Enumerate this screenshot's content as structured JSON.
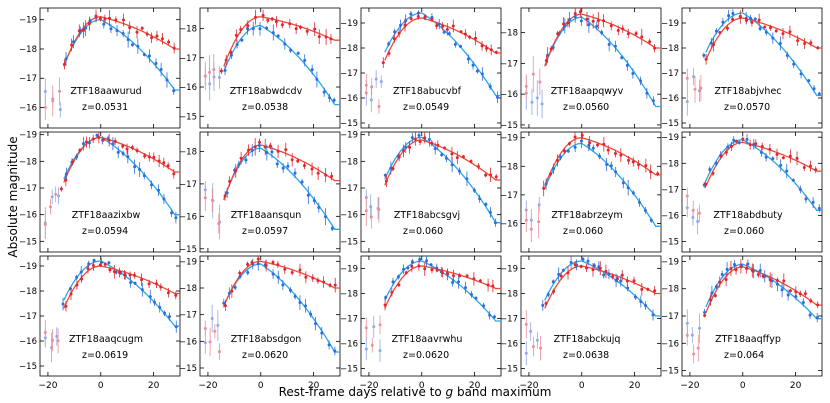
{
  "figure": {
    "ylabel": "Absolute magnitude",
    "xlabel_prefix": "Rest-frame days relative to ",
    "xlabel_band": "g",
    "xlabel_suffix": " band maximum",
    "colors": {
      "g": "#2a6fdb",
      "r": "#e0262f",
      "g_fit": "#2aa6ee",
      "r_fit": "#f04a3a",
      "g_faint": "#8fa9ea",
      "r_faint": "#ec8f98"
    }
  },
  "chart_data": {
    "type": "scatter",
    "xlim": [
      -23,
      30
    ],
    "xticks": [
      -20,
      0,
      20
    ],
    "grid": false,
    "panels": [
      {
        "name": "ZTF18aawurud",
        "z": "z=0.0531",
        "ylim": [
          -15.3,
          -19.4
        ],
        "yticks": [
          -16,
          -17,
          -18,
          -19
        ],
        "peak_g": -19.0,
        "peak_r": -19.1,
        "late_g": -16.6,
        "late_r": -18.0
      },
      {
        "name": "ZTF18abwdcdv",
        "z": "z=0.0538",
        "ylim": [
          -14.6,
          -18.7
        ],
        "yticks": [
          -15,
          -16,
          -17,
          -18
        ],
        "peak_g": -18.1,
        "peak_r": -18.4,
        "late_g": -15.4,
        "late_r": -17.6
      },
      {
        "name": "ZTF18abucvbf",
        "z": "z=0.0549",
        "ylim": [
          -14.8,
          -19.6
        ],
        "yticks": [
          -15,
          -16,
          -17,
          -18,
          -19
        ],
        "peak_g": -19.4,
        "peak_r": -19.2,
        "late_g": -16.1,
        "late_r": -17.8
      },
      {
        "name": "ZTF18aapqwyv",
        "z": "z=0.0560",
        "ylim": [
          -14.9,
          -18.8
        ],
        "yticks": [
          -15,
          -16,
          -17,
          -18
        ],
        "peak_g": -18.5,
        "peak_r": -18.6,
        "late_g": -15.6,
        "late_r": -17.5
      },
      {
        "name": "ZTF18abjvhec",
        "z": "z=0.0570",
        "ylim": [
          -14.8,
          -19.6
        ],
        "yticks": [
          -15,
          -16,
          -17,
          -18,
          -19
        ],
        "peak_g": -19.4,
        "peak_r": -19.2,
        "late_g": -16.1,
        "late_r": -18.0
      },
      {
        "name": "ZTF18aazixbw",
        "z": "z=0.0594",
        "ylim": [
          -14.6,
          -19.1
        ],
        "yticks": [
          -15,
          -16,
          -17,
          -18,
          -19
        ],
        "peak_g": -18.9,
        "peak_r": -18.9,
        "late_g": -16.0,
        "late_r": -17.6
      },
      {
        "name": "ZTF18aansqun",
        "z": "z=0.0597",
        "ylim": [
          -14.9,
          -18.6
        ],
        "yticks": [
          -15,
          -16,
          -17,
          -18
        ],
        "peak_g": -18.1,
        "peak_r": -18.2,
        "late_g": -15.6,
        "late_r": -17.1
      },
      {
        "name": "ZTF18abcsgvj",
        "z": "z=0.060",
        "ylim": [
          -14.6,
          -19.1
        ],
        "yticks": [
          -15,
          -16,
          -17,
          -18,
          -19
        ],
        "peak_g": -18.9,
        "peak_r": -18.8,
        "late_g": -15.7,
        "late_r": -17.3
      },
      {
        "name": "ZTF18abrzeym",
        "z": "z=0.060",
        "ylim": [
          -15.0,
          -19.2
        ],
        "yticks": [
          -16,
          -17,
          -18,
          -19
        ],
        "peak_g": -18.8,
        "peak_r": -19.0,
        "late_g": -15.9,
        "late_r": -17.7
      },
      {
        "name": "ZTF18abdbuty",
        "z": "z=0.060",
        "ylim": [
          -14.6,
          -19.2
        ],
        "yticks": [
          -15,
          -16,
          -17,
          -18,
          -19
        ],
        "peak_g": -18.9,
        "peak_r": -18.8,
        "late_g": -16.2,
        "late_r": -17.7
      },
      {
        "name": "ZTF18aaqcugm",
        "z": "z=0.0619",
        "ylim": [
          -14.6,
          -19.4
        ],
        "yticks": [
          -15,
          -16,
          -17,
          -18,
          -19
        ],
        "peak_g": -19.2,
        "peak_r": -19.0,
        "late_g": -16.6,
        "late_r": -17.9
      },
      {
        "name": "ZTF18absdgon",
        "z": "z=0.0620",
        "ylim": [
          -14.7,
          -19.2
        ],
        "yticks": [
          -15,
          -16,
          -17,
          -18,
          -19
        ],
        "peak_g": -18.9,
        "peak_r": -19.0,
        "late_g": -15.6,
        "late_r": -18.0
      },
      {
        "name": "ZTF18aavrwhu",
        "z": "z=0.0620",
        "ylim": [
          -14.7,
          -19.5
        ],
        "yticks": [
          -15,
          -16,
          -17,
          -18,
          -19
        ],
        "peak_g": -19.3,
        "peak_r": -19.1,
        "late_g": -16.9,
        "late_r": -18.2
      },
      {
        "name": "ZTF18abckujq",
        "z": "z=0.0638",
        "ylim": [
          -14.7,
          -19.5
        ],
        "yticks": [
          -15,
          -16,
          -17,
          -18,
          -19
        ],
        "peak_g": -19.3,
        "peak_r": -19.1,
        "late_g": -17.1,
        "late_r": -18.0
      },
      {
        "name": "ZTF18aaqffyp",
        "z": "z=0.064",
        "ylim": [
          -14.8,
          -19.2
        ],
        "yticks": [
          -15,
          -16,
          -17,
          -18,
          -19
        ],
        "peak_g": -18.9,
        "peak_r": -18.8,
        "late_g": -16.9,
        "late_r": -17.4
      }
    ]
  }
}
